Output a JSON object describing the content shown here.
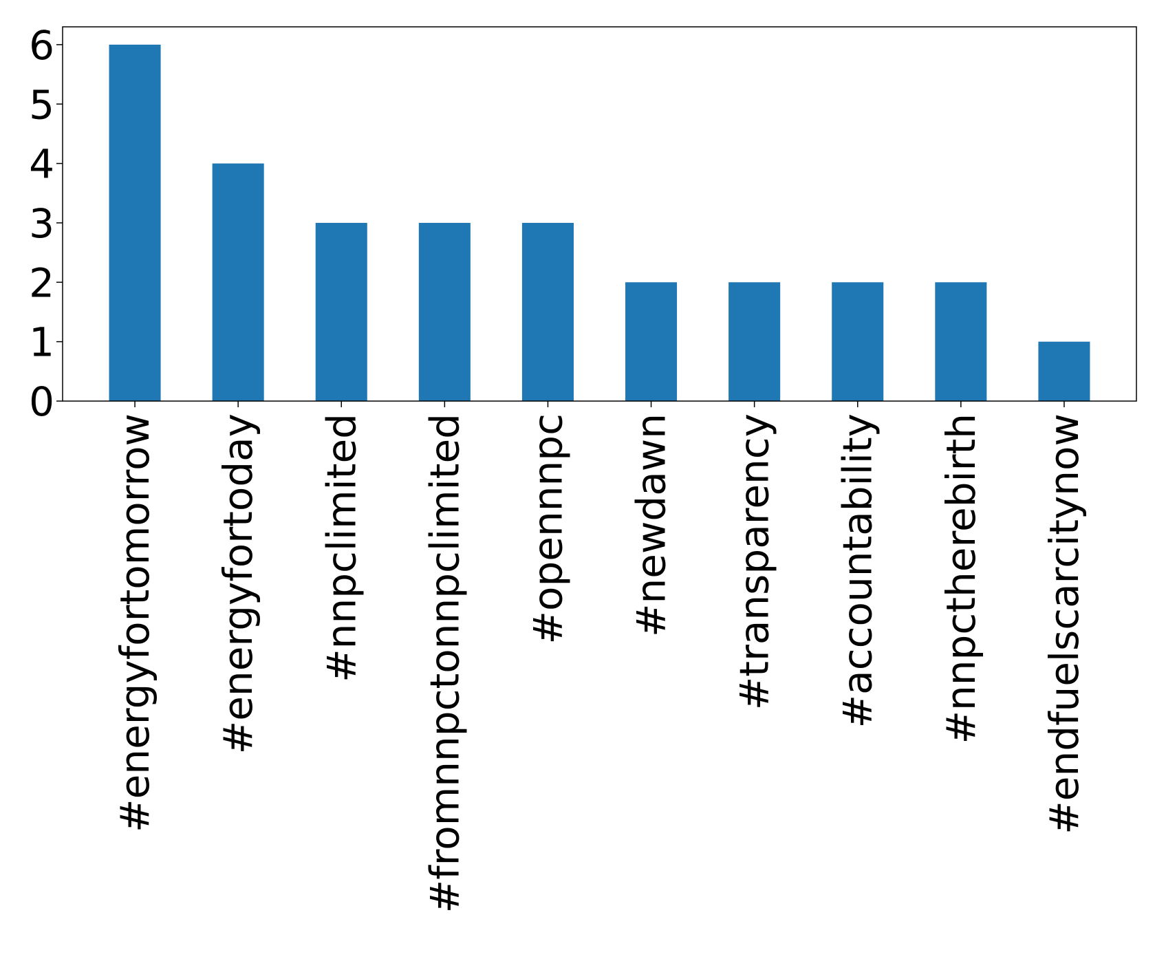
{
  "chart_data": {
    "type": "bar",
    "title": "",
    "xlabel": "",
    "ylabel": "",
    "categories": [
      "#energyfortomorrow",
      "#energyfortoday",
      "#nnpclimited",
      "#fromnnpctonnpclimited",
      "#opennnpc",
      "#newdawn",
      "#transparency",
      "#accountability",
      "#nnpctherebirth",
      "#endfuelscarcitynow"
    ],
    "values": [
      6,
      4,
      3,
      3,
      3,
      2,
      2,
      2,
      2,
      1
    ],
    "ylim": [
      0,
      6.3
    ],
    "yticks": [
      0,
      1,
      2,
      3,
      4,
      5,
      6
    ],
    "grid": false,
    "legend": "none",
    "colors": {
      "bar": "#1f77b4",
      "axis": "#000000"
    }
  }
}
